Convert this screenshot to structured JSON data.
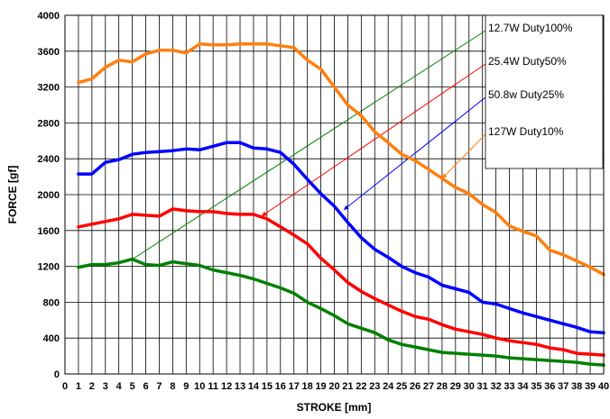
{
  "chart_data": {
    "type": "line",
    "xlabel": "STROKE [mm]",
    "ylabel": "FORCE [gf]",
    "xlim": [
      0,
      40
    ],
    "ylim": [
      0,
      4000
    ],
    "x_ticks": [
      0,
      1,
      2,
      3,
      4,
      5,
      6,
      7,
      8,
      9,
      10,
      11,
      12,
      13,
      14,
      15,
      16,
      17,
      18,
      19,
      20,
      21,
      22,
      23,
      24,
      25,
      26,
      27,
      28,
      29,
      30,
      31,
      32,
      33,
      34,
      35,
      36,
      37,
      38,
      39,
      40
    ],
    "y_ticks": [
      0,
      400,
      800,
      1200,
      1600,
      2000,
      2400,
      2800,
      3200,
      3600,
      4000
    ],
    "y_tick_labels": [
      "0",
      "400",
      "800",
      "1200",
      "1600",
      "2000",
      "2400",
      "2800",
      "3200",
      "3600",
      "4000"
    ],
    "grid": true,
    "legend_position": "top-right",
    "series": [
      {
        "name": "12.7W Duty100%",
        "color": "#ff7f0e",
        "leader_color": "#008000",
        "x": [
          1,
          2,
          3,
          4,
          5,
          6,
          7,
          8,
          9,
          10,
          11,
          12,
          13,
          14,
          15,
          16,
          17,
          18,
          19,
          20,
          21,
          22,
          23,
          24,
          25,
          26,
          27,
          28,
          29,
          30,
          31,
          32,
          33,
          34,
          35,
          36,
          37,
          38,
          39,
          40
        ],
        "values": [
          3250,
          3290,
          3420,
          3500,
          3480,
          3570,
          3610,
          3610,
          3580,
          3680,
          3670,
          3670,
          3680,
          3680,
          3680,
          3660,
          3640,
          3500,
          3400,
          3200,
          3000,
          2880,
          2700,
          2580,
          2450,
          2380,
          2280,
          2180,
          2080,
          2010,
          1890,
          1800,
          1650,
          1590,
          1540,
          1380,
          1330,
          1260,
          1190,
          1110
        ]
      },
      {
        "name": "25.4W Duty50%",
        "color": "#0000ff",
        "leader_color": "#ff0000",
        "x": [
          1,
          2,
          3,
          4,
          5,
          6,
          7,
          8,
          9,
          10,
          11,
          12,
          13,
          14,
          15,
          16,
          17,
          18,
          19,
          20,
          21,
          22,
          23,
          24,
          25,
          26,
          27,
          28,
          29,
          30,
          31,
          32,
          33,
          34,
          35,
          36,
          37,
          38,
          39,
          40
        ],
        "values": [
          2230,
          2230,
          2360,
          2390,
          2450,
          2470,
          2480,
          2490,
          2510,
          2500,
          2540,
          2580,
          2580,
          2520,
          2510,
          2470,
          2340,
          2170,
          2010,
          1870,
          1690,
          1520,
          1390,
          1300,
          1200,
          1130,
          1080,
          990,
          950,
          910,
          800,
          780,
          730,
          680,
          640,
          600,
          560,
          520,
          470,
          460
        ]
      },
      {
        "name": "50.8w  Duty25%",
        "color": "#ff0000",
        "leader_color": "#0000ff",
        "x": [
          1,
          2,
          3,
          4,
          5,
          6,
          7,
          8,
          9,
          10,
          11,
          12,
          13,
          14,
          15,
          16,
          17,
          18,
          19,
          20,
          21,
          22,
          23,
          24,
          25,
          26,
          27,
          28,
          29,
          30,
          31,
          32,
          33,
          34,
          35,
          36,
          37,
          38,
          39,
          40
        ],
        "values": [
          1640,
          1670,
          1700,
          1730,
          1780,
          1770,
          1760,
          1840,
          1820,
          1810,
          1810,
          1790,
          1780,
          1780,
          1730,
          1640,
          1550,
          1450,
          1290,
          1160,
          1020,
          920,
          840,
          770,
          700,
          640,
          610,
          550,
          500,
          470,
          440,
          400,
          370,
          350,
          330,
          290,
          270,
          230,
          220,
          210
        ]
      },
      {
        "name": "127W  Duty10%",
        "color": "#008000",
        "leader_color": "#ff7f0e",
        "x": [
          1,
          2,
          3,
          4,
          5,
          6,
          7,
          8,
          9,
          10,
          11,
          12,
          13,
          14,
          15,
          16,
          17,
          18,
          19,
          20,
          21,
          22,
          23,
          24,
          25,
          26,
          27,
          28,
          29,
          30,
          31,
          32,
          33,
          34,
          35,
          36,
          37,
          38,
          39,
          40
        ],
        "values": [
          1190,
          1220,
          1220,
          1240,
          1280,
          1220,
          1210,
          1250,
          1230,
          1210,
          1160,
          1130,
          1100,
          1060,
          1010,
          960,
          900,
          800,
          730,
          650,
          560,
          510,
          460,
          380,
          330,
          300,
          270,
          240,
          230,
          220,
          210,
          200,
          180,
          170,
          160,
          150,
          140,
          130,
          110,
          100
        ]
      }
    ]
  }
}
